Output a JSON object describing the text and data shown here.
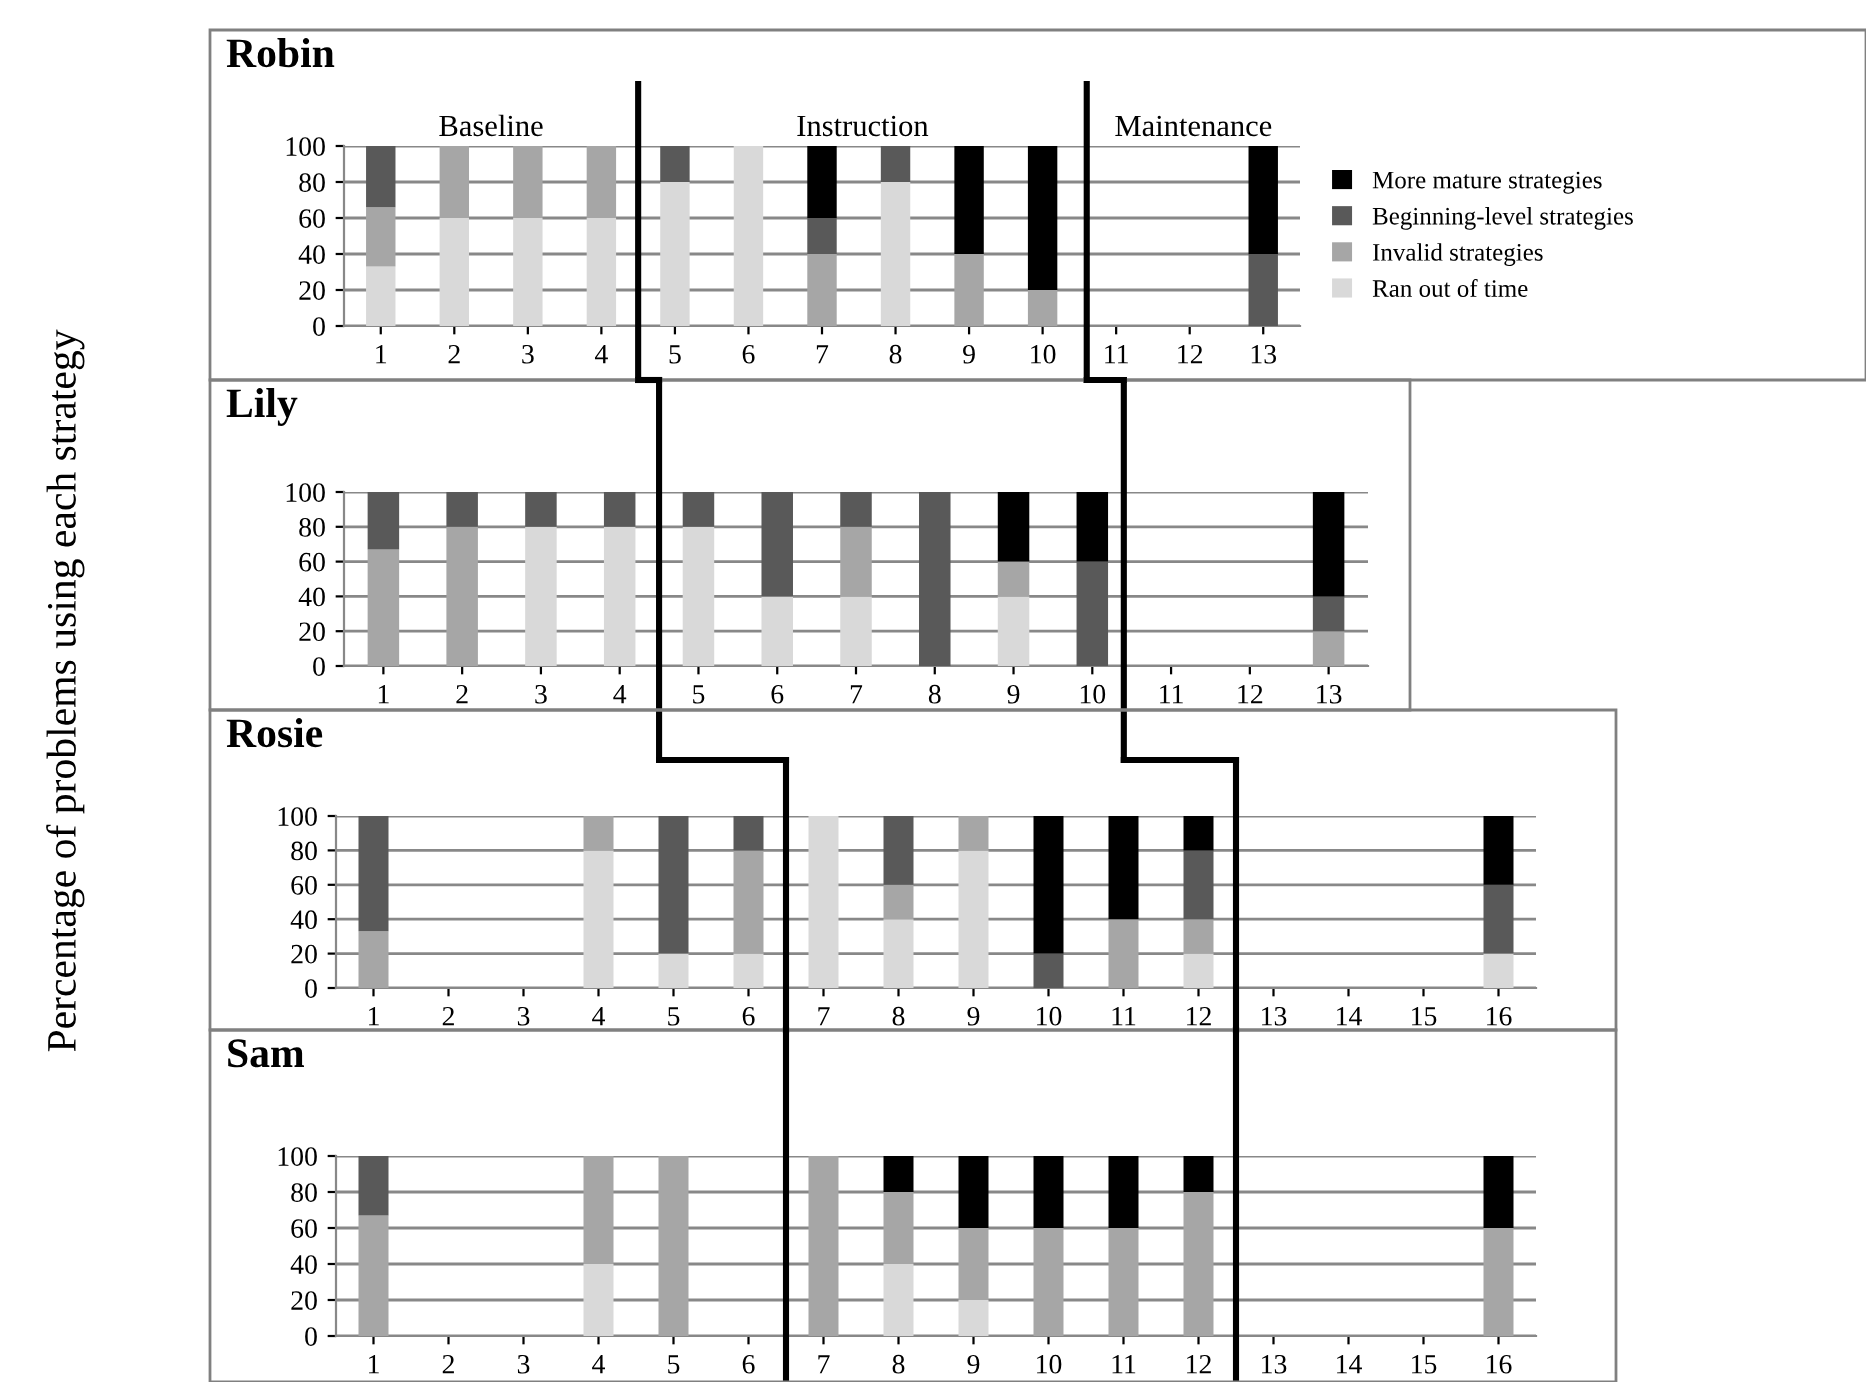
{
  "chart_data": [
    {
      "type": "bar",
      "title": "Robin",
      "ylabel": "Percentage of problems using each strategy",
      "stacked": true,
      "grid": "y",
      "legend": "right",
      "x": [
        1,
        2,
        3,
        4,
        5,
        6,
        7,
        8,
        9,
        10,
        11,
        12,
        13
      ],
      "xlim": [
        0.5,
        13.5
      ],
      "xticks": [
        1,
        2,
        3,
        4,
        5,
        6,
        7,
        8,
        9,
        10,
        11,
        12,
        13
      ],
      "ylim": [
        0,
        100
      ],
      "yticks": [
        0,
        20,
        40,
        60,
        80,
        100
      ],
      "annotations": [
        "Baseline",
        "Instruction",
        "Maintenance"
      ],
      "ref_lines": [
        {
          "axis": "x",
          "value": 4.5,
          "color": "#000000"
        },
        {
          "axis": "x",
          "value": 10.6,
          "color": "#000000"
        }
      ],
      "series": [
        {
          "name": "Ran out of time",
          "color": "#d9d9d9",
          "values": [
            33,
            60,
            60,
            60,
            80,
            100,
            0,
            80,
            0,
            0,
            null,
            null,
            0
          ]
        },
        {
          "name": "Invalid strategies",
          "color": "#a6a6a6",
          "values": [
            33,
            40,
            40,
            40,
            0,
            0,
            40,
            0,
            40,
            20,
            null,
            null,
            0
          ]
        },
        {
          "name": "Beginning-level strategies",
          "color": "#595959",
          "values": [
            34,
            0,
            0,
            0,
            20,
            0,
            20,
            20,
            0,
            0,
            null,
            null,
            40
          ]
        },
        {
          "name": "More mature strategies",
          "color": "#000000",
          "values": [
            0,
            0,
            0,
            0,
            0,
            0,
            40,
            0,
            60,
            80,
            null,
            null,
            60
          ]
        }
      ]
    },
    {
      "type": "bar",
      "title": "Lily",
      "stacked": true,
      "grid": "y",
      "x": [
        1,
        2,
        3,
        4,
        5,
        6,
        7,
        8,
        9,
        10,
        11,
        12,
        13
      ],
      "xlim": [
        0.5,
        13.5
      ],
      "xticks": [
        1,
        2,
        3,
        4,
        5,
        6,
        7,
        8,
        9,
        10,
        11,
        12,
        13
      ],
      "ylim": [
        0,
        100
      ],
      "yticks": [
        0,
        20,
        40,
        60,
        80,
        100
      ],
      "ref_lines": [
        {
          "axis": "x",
          "value": 4.5,
          "color": "#000000"
        },
        {
          "axis": "x",
          "value": 10.4,
          "color": "#000000"
        }
      ],
      "series": [
        {
          "color": "#d9d9d9",
          "values": [
            0,
            0,
            80,
            80,
            80,
            40,
            40,
            0,
            40,
            0,
            null,
            null,
            0
          ]
        },
        {
          "color": "#a6a6a6",
          "values": [
            67,
            80,
            0,
            0,
            0,
            0,
            40,
            0,
            20,
            0,
            null,
            null,
            20
          ]
        },
        {
          "color": "#595959",
          "values": [
            33,
            20,
            20,
            20,
            20,
            60,
            20,
            100,
            0,
            60,
            null,
            null,
            20
          ]
        },
        {
          "color": "#000000",
          "values": [
            0,
            0,
            0,
            0,
            0,
            0,
            0,
            0,
            40,
            40,
            null,
            null,
            60
          ]
        }
      ]
    },
    {
      "type": "bar",
      "title": "Rosie",
      "stacked": true,
      "grid": "y",
      "x": [
        1,
        2,
        3,
        4,
        5,
        6,
        7,
        8,
        9,
        10,
        11,
        12,
        13,
        14,
        15,
        16
      ],
      "xlim": [
        0.5,
        16.5
      ],
      "xticks": [
        1,
        2,
        3,
        4,
        5,
        6,
        7,
        8,
        9,
        10,
        11,
        12,
        13,
        14,
        15,
        16
      ],
      "ylim": [
        0,
        100
      ],
      "yticks": [
        0,
        20,
        40,
        60,
        80,
        100
      ],
      "ref_lines": [
        {
          "axis": "x",
          "value": 6.5,
          "color": "#000000"
        },
        {
          "axis": "x",
          "value": 12.5,
          "color": "#000000"
        }
      ],
      "series": [
        {
          "color": "#d9d9d9",
          "values": [
            0,
            null,
            null,
            80,
            20,
            20,
            100,
            40,
            80,
            0,
            0,
            20,
            null,
            null,
            null,
            20
          ]
        },
        {
          "color": "#a6a6a6",
          "values": [
            33,
            null,
            null,
            20,
            0,
            60,
            0,
            20,
            20,
            0,
            40,
            20,
            null,
            null,
            null,
            0
          ]
        },
        {
          "color": "#595959",
          "values": [
            67,
            null,
            null,
            0,
            80,
            20,
            0,
            40,
            0,
            20,
            0,
            40,
            null,
            null,
            null,
            40
          ]
        },
        {
          "color": "#000000",
          "values": [
            0,
            null,
            null,
            0,
            0,
            0,
            0,
            0,
            0,
            80,
            60,
            20,
            null,
            null,
            null,
            40
          ]
        }
      ]
    },
    {
      "type": "bar",
      "title": "Sam",
      "stacked": true,
      "grid": "y",
      "x": [
        1,
        2,
        3,
        4,
        5,
        6,
        7,
        8,
        9,
        10,
        11,
        12,
        13,
        14,
        15,
        16
      ],
      "xlim": [
        0.5,
        16.5
      ],
      "xticks": [
        1,
        2,
        3,
        4,
        5,
        6,
        7,
        8,
        9,
        10,
        11,
        12,
        13,
        14,
        15,
        16
      ],
      "ylim": [
        0,
        100
      ],
      "yticks": [
        0,
        20,
        40,
        60,
        80,
        100
      ],
      "ref_lines": [
        {
          "axis": "x",
          "value": 6.5,
          "color": "#000000"
        },
        {
          "axis": "x",
          "value": 12.5,
          "color": "#000000"
        }
      ],
      "series": [
        {
          "color": "#d9d9d9",
          "values": [
            0,
            null,
            null,
            40,
            0,
            null,
            0,
            40,
            20,
            0,
            0,
            0,
            null,
            null,
            null,
            0
          ]
        },
        {
          "color": "#a6a6a6",
          "values": [
            67,
            null,
            null,
            60,
            100,
            null,
            100,
            40,
            40,
            60,
            60,
            80,
            null,
            null,
            null,
            60
          ]
        },
        {
          "color": "#595959",
          "values": [
            33,
            null,
            null,
            0,
            0,
            null,
            0,
            0,
            0,
            0,
            0,
            0,
            null,
            null,
            null,
            0
          ]
        },
        {
          "color": "#000000",
          "values": [
            0,
            null,
            null,
            0,
            0,
            null,
            0,
            20,
            40,
            40,
            40,
            20,
            null,
            null,
            null,
            40
          ]
        }
      ]
    }
  ]
}
